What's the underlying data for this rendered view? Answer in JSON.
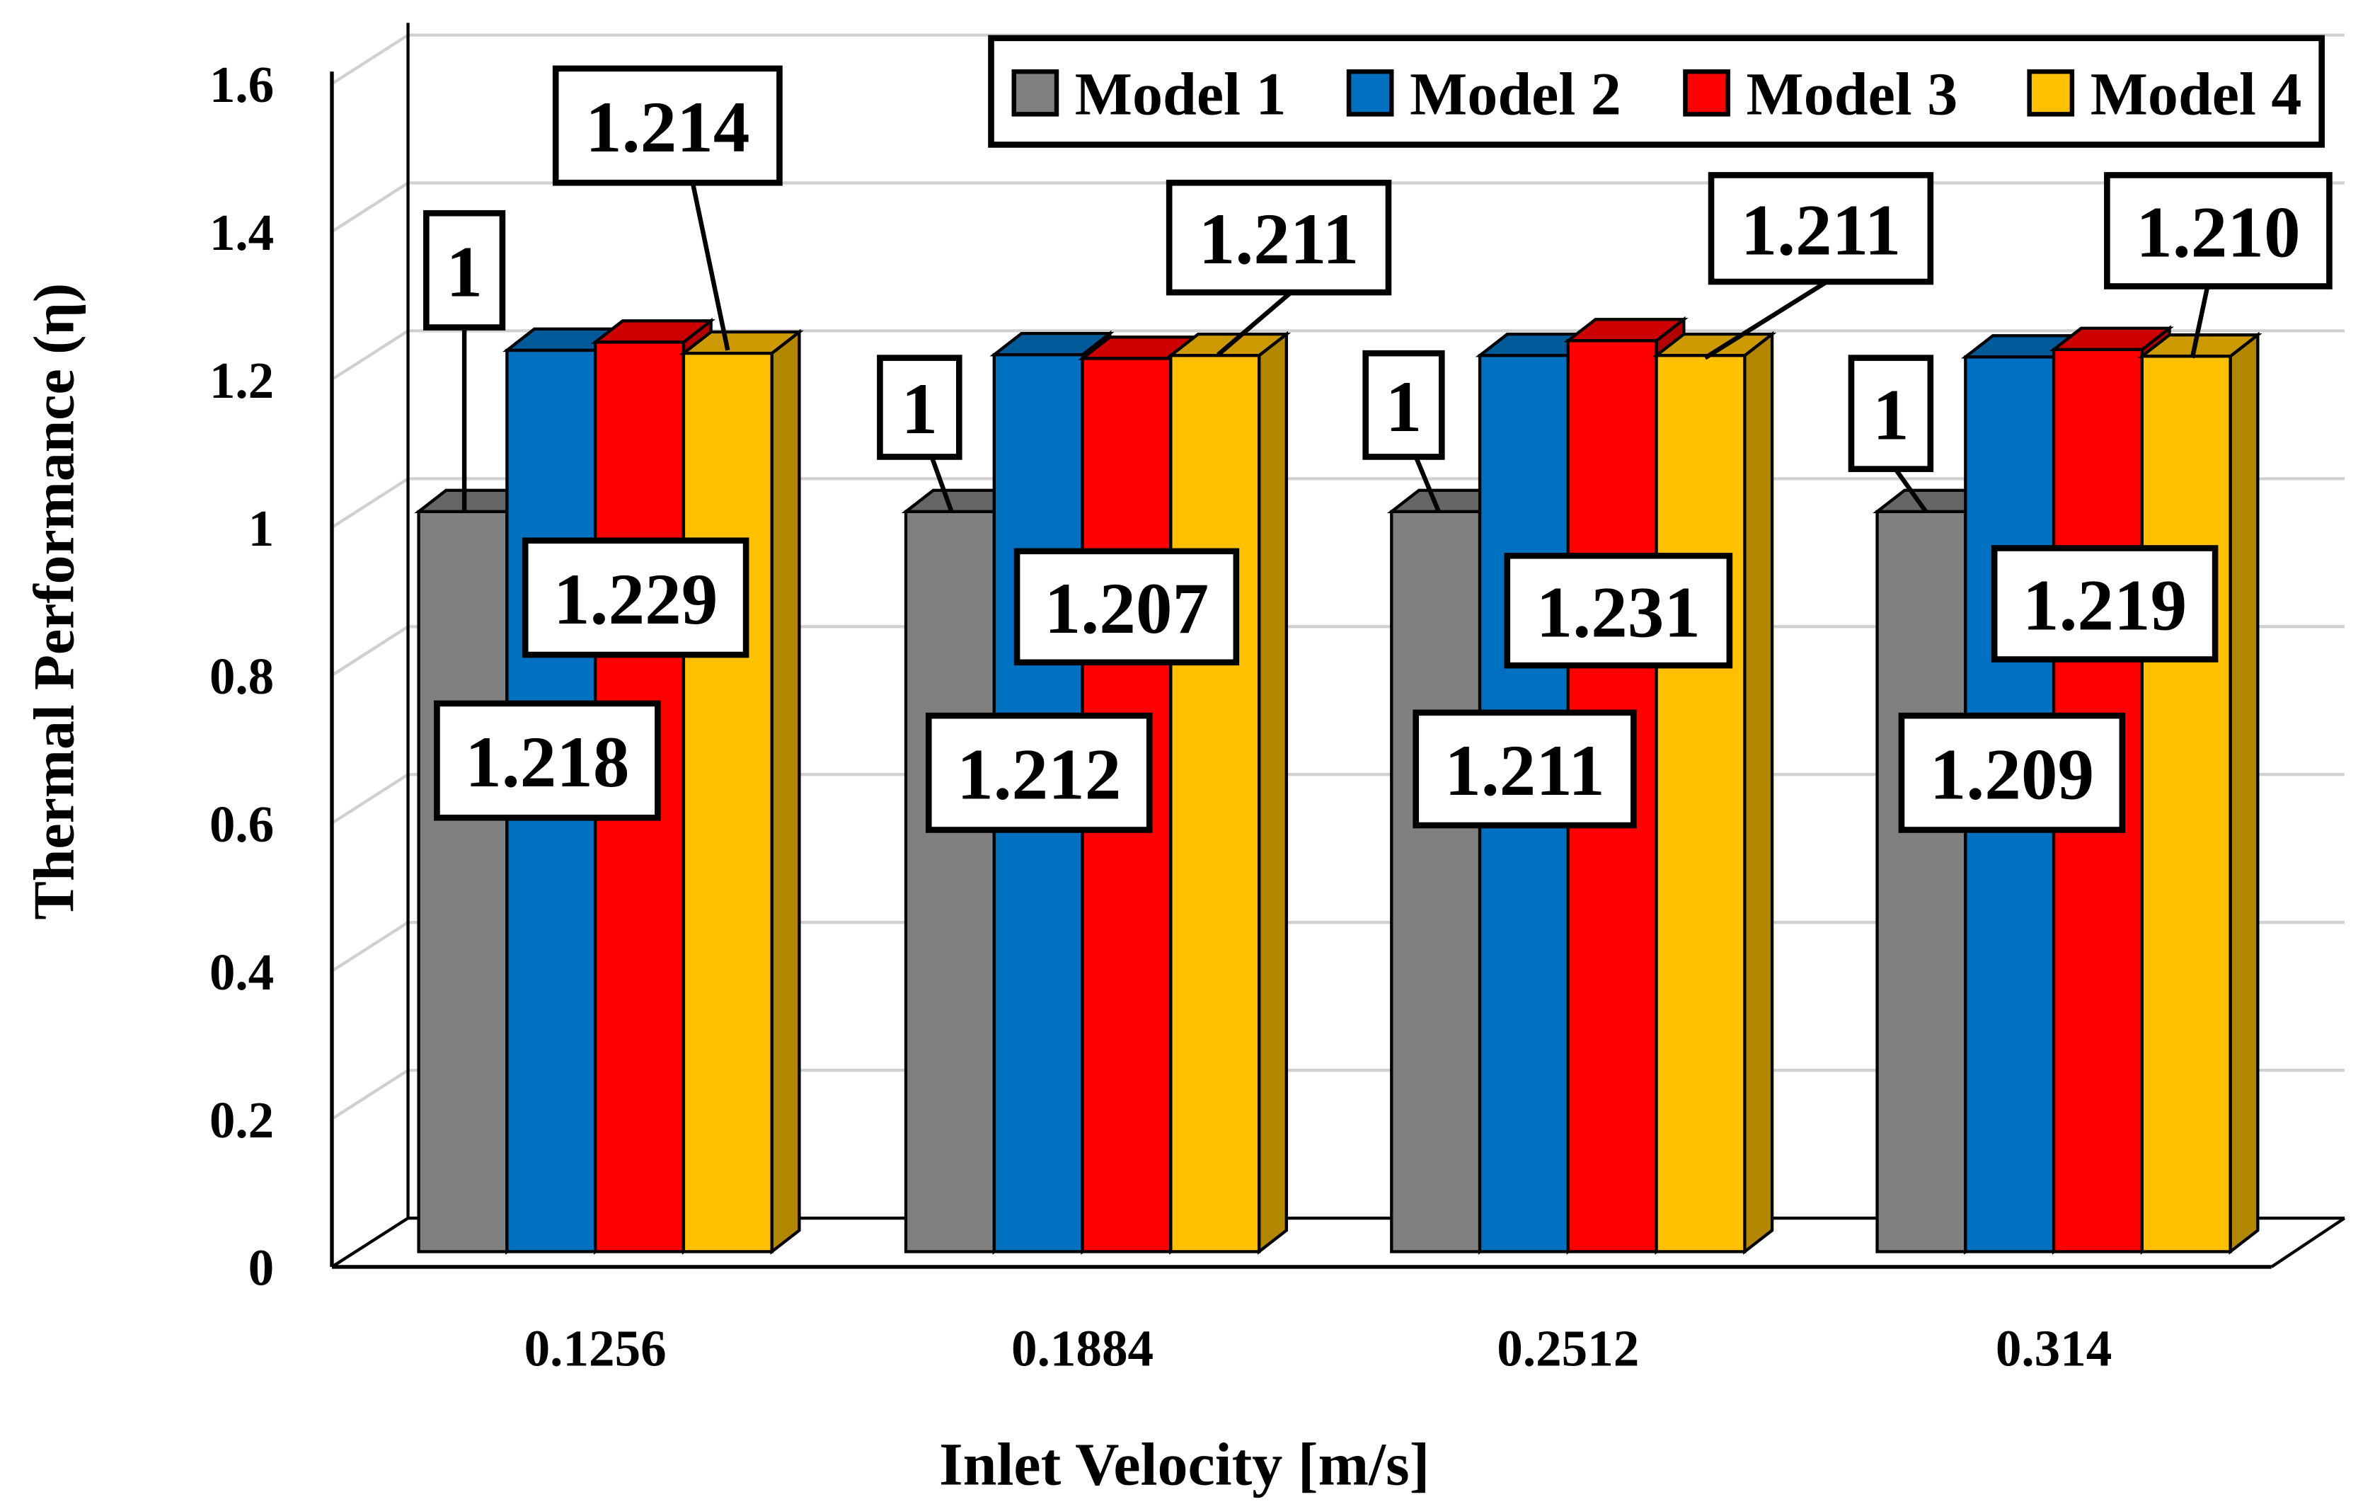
{
  "chart_data": {
    "type": "bar",
    "title": "",
    "xlabel": "Inlet Velocity [m/s]",
    "ylabel": "Thermal Performance (η)",
    "ylim": [
      0,
      1.6
    ],
    "yticks": [
      "0",
      "0.2",
      "0.4",
      "0.6",
      "0.8",
      "1",
      "1.2",
      "1.4",
      "1.6"
    ],
    "grid": true,
    "legend_position": "top-right",
    "categories": [
      "0.1256",
      "0.1884",
      "0.2512",
      "0.314"
    ],
    "series": [
      {
        "name": "Model 1",
        "color": "#808080",
        "values": [
          1,
          1,
          1,
          1
        ],
        "labels": [
          "1",
          "1",
          "1",
          "1"
        ]
      },
      {
        "name": "Model 2",
        "color": "#0070C0",
        "values": [
          1.218,
          1.212,
          1.211,
          1.209
        ],
        "labels": [
          "1.218",
          "1.212",
          "1.211",
          "1.209"
        ]
      },
      {
        "name": "Model 3",
        "color": "#FF0000",
        "values": [
          1.229,
          1.207,
          1.231,
          1.219
        ],
        "labels": [
          "1.229",
          "1.207",
          "1.231",
          "1.219"
        ]
      },
      {
        "name": "Model 4",
        "color": "#FFC000",
        "values": [
          1.214,
          1.211,
          1.211,
          1.21
        ],
        "labels": [
          "1.214",
          "1.211",
          "1.211",
          "1.210"
        ]
      }
    ]
  }
}
